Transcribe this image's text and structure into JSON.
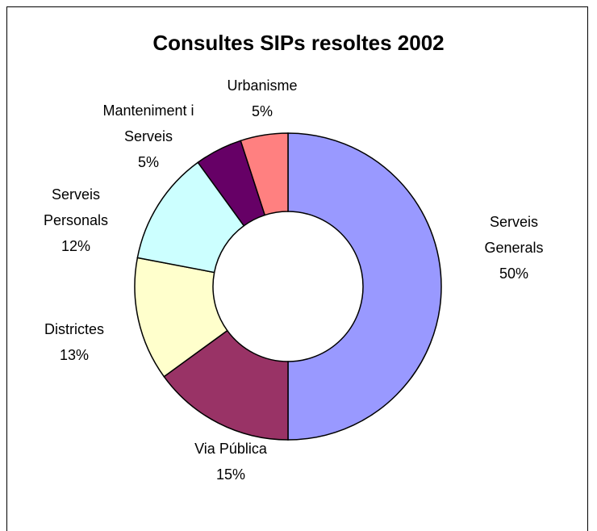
{
  "chart_data": {
    "type": "pie",
    "title": "Consultes SIPs resoltes 2002",
    "slices": [
      {
        "name": "Serveis Generals",
        "value": 50,
        "label_lines": [
          "Serveis",
          "Generals",
          "50%"
        ],
        "color": "#9999FF"
      },
      {
        "name": "Via Pública",
        "value": 15,
        "label_lines": [
          "Via Pública",
          "15%"
        ],
        "color": "#993366"
      },
      {
        "name": "Districtes",
        "value": 13,
        "label_lines": [
          "Districtes",
          "13%"
        ],
        "color": "#FFFFCC"
      },
      {
        "name": "Serveis Personals",
        "value": 12,
        "label_lines": [
          "Serveis",
          "Personals",
          "12%"
        ],
        "color": "#CCFFFF"
      },
      {
        "name": "Manteniment i Serveis",
        "value": 5,
        "label_lines": [
          "Manteniment i",
          "Serveis",
          "5%"
        ],
        "color": "#660066"
      },
      {
        "name": "Urbanisme",
        "value": 5,
        "label_lines": [
          "Urbanisme",
          "5%"
        ],
        "color": "#FF8080"
      }
    ],
    "legend": "none",
    "donut": true
  }
}
